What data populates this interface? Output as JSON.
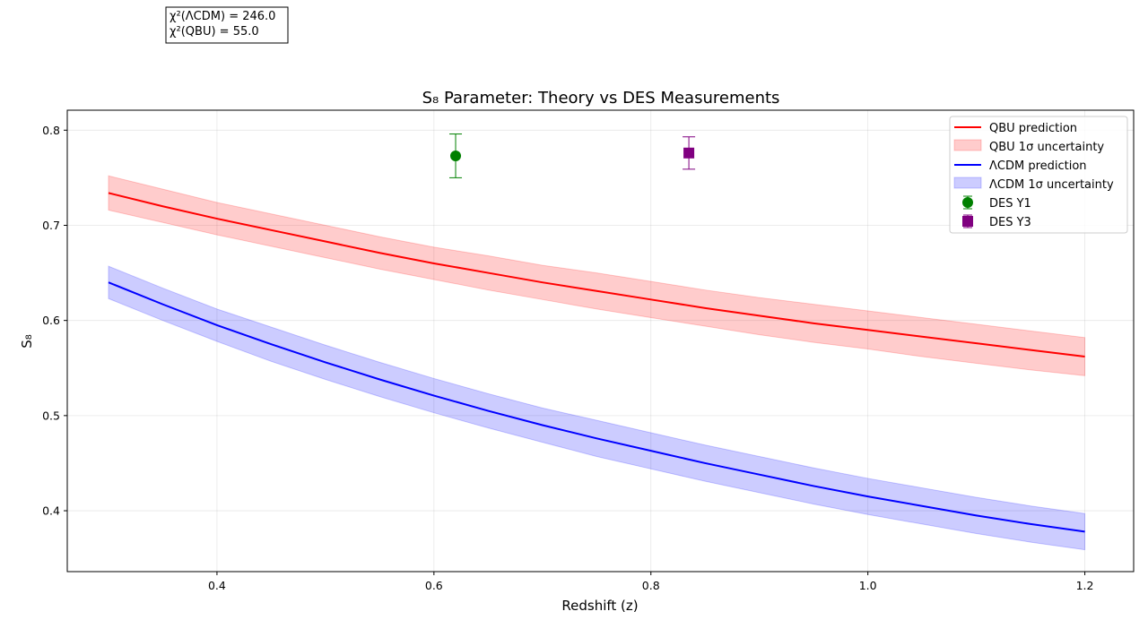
{
  "chart_data": {
    "type": "line",
    "title": "S₈ Parameter: Theory vs DES Measurements",
    "xlabel": "Redshift (z)",
    "ylabel": "S₈",
    "xlim": [
      0.262,
      1.245
    ],
    "ylim": [
      0.336,
      0.821
    ],
    "xticks": [
      0.4,
      0.6,
      0.8,
      1.0,
      1.2
    ],
    "xtick_labels": [
      "0.4",
      "0.6",
      "0.8",
      "1.0",
      "1.2"
    ],
    "yticks": [
      0.4,
      0.5,
      0.6,
      0.7,
      0.8
    ],
    "ytick_labels": [
      "0.4",
      "0.5",
      "0.6",
      "0.7",
      "0.8"
    ],
    "grid": true,
    "legend_position": "top-right",
    "series": [
      {
        "name": "QBU prediction",
        "band_name": "QBU 1σ uncertainty",
        "color": "#ff0000",
        "x": [
          0.3,
          0.35,
          0.4,
          0.45,
          0.5,
          0.55,
          0.6,
          0.65,
          0.7,
          0.75,
          0.8,
          0.85,
          0.9,
          0.95,
          1.0,
          1.05,
          1.1,
          1.15,
          1.2
        ],
        "y": [
          0.734,
          0.72,
          0.707,
          0.695,
          0.683,
          0.671,
          0.66,
          0.65,
          0.64,
          0.631,
          0.622,
          0.613,
          0.605,
          0.597,
          0.59,
          0.583,
          0.576,
          0.569,
          0.562
        ],
        "y_lower": [
          0.716,
          0.703,
          0.69,
          0.678,
          0.666,
          0.654,
          0.643,
          0.632,
          0.622,
          0.612,
          0.603,
          0.594,
          0.585,
          0.577,
          0.57,
          0.562,
          0.555,
          0.548,
          0.542
        ],
        "y_upper": [
          0.752,
          0.738,
          0.724,
          0.712,
          0.7,
          0.688,
          0.677,
          0.668,
          0.658,
          0.65,
          0.641,
          0.632,
          0.624,
          0.617,
          0.61,
          0.603,
          0.596,
          0.589,
          0.582
        ]
      },
      {
        "name": "ΛCDM prediction",
        "band_name": "ΛCDM 1σ uncertainty",
        "color": "#0000ff",
        "x": [
          0.3,
          0.35,
          0.4,
          0.45,
          0.5,
          0.55,
          0.6,
          0.65,
          0.7,
          0.75,
          0.8,
          0.85,
          0.9,
          0.95,
          1.0,
          1.05,
          1.1,
          1.15,
          1.2
        ],
        "y": [
          0.64,
          0.617,
          0.595,
          0.575,
          0.556,
          0.538,
          0.521,
          0.505,
          0.49,
          0.476,
          0.463,
          0.45,
          0.438,
          0.426,
          0.415,
          0.405,
          0.395,
          0.386,
          0.378
        ],
        "y_lower": [
          0.623,
          0.6,
          0.578,
          0.557,
          0.538,
          0.52,
          0.503,
          0.487,
          0.472,
          0.457,
          0.444,
          0.431,
          0.419,
          0.407,
          0.396,
          0.386,
          0.376,
          0.367,
          0.359
        ],
        "y_upper": [
          0.657,
          0.634,
          0.612,
          0.593,
          0.574,
          0.556,
          0.539,
          0.523,
          0.508,
          0.495,
          0.482,
          0.469,
          0.457,
          0.445,
          0.434,
          0.424,
          0.414,
          0.405,
          0.397
        ]
      }
    ],
    "measurements": [
      {
        "name": "DES Y1",
        "x": 0.62,
        "y": 0.773,
        "err": 0.023,
        "marker": "circle",
        "color": "#008000"
      },
      {
        "name": "DES Y3",
        "x": 0.835,
        "y": 0.776,
        "err": 0.017,
        "marker": "square",
        "color": "#800080"
      }
    ],
    "annotation": {
      "lines": [
        "χ²(ΛCDM) = 246.0",
        "χ²(QBU) = 55.0"
      ]
    }
  }
}
